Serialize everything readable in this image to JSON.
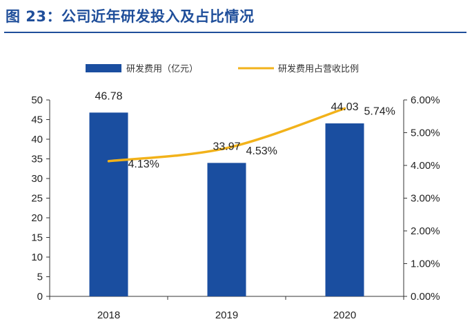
{
  "header": {
    "title": "图 23：公司近年研发投入及占比情况"
  },
  "colors": {
    "bar": "#1a4ea0",
    "line": "#f2b21a",
    "title": "#1f4e9a",
    "axis": "#333333"
  },
  "chart_data": {
    "type": "bar",
    "title": "",
    "categories": [
      "2018",
      "2019",
      "2020"
    ],
    "series": [
      {
        "name": "研发费用（亿元）",
        "type": "bar",
        "axis": "left",
        "values": [
          46.78,
          33.97,
          44.03
        ],
        "labels": [
          "46.78",
          "33.97",
          "44.03"
        ]
      },
      {
        "name": "研发费用占营收比例",
        "type": "line",
        "axis": "right",
        "values": [
          4.13,
          4.53,
          5.74
        ],
        "labels": [
          "4.13%",
          "4.53%",
          "5.74%"
        ]
      }
    ],
    "y_left": {
      "min": 0,
      "max": 50,
      "ticks": [
        "0",
        "5",
        "10",
        "15",
        "20",
        "25",
        "30",
        "35",
        "40",
        "45",
        "50"
      ]
    },
    "y_right": {
      "min": 0,
      "max": 6,
      "ticks": [
        "0.00%",
        "1.00%",
        "2.00%",
        "3.00%",
        "4.00%",
        "5.00%",
        "6.00%"
      ]
    },
    "legend_position": "top",
    "grid": false
  }
}
